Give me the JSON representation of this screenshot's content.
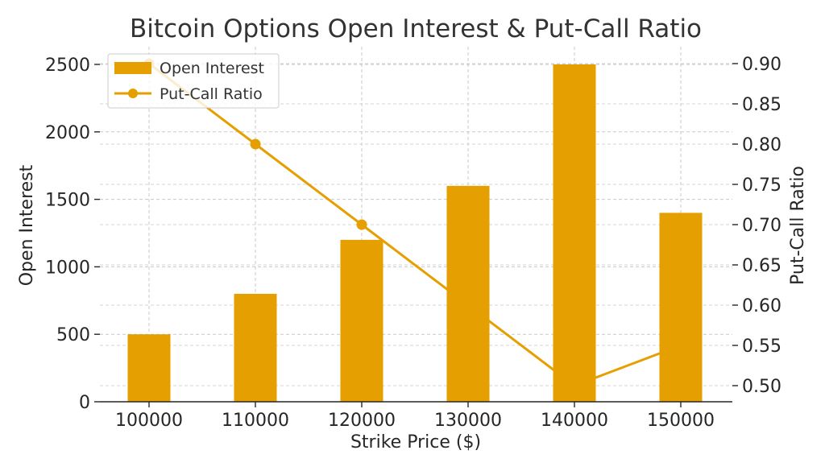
{
  "chart_data": {
    "type": "bar",
    "title": "Bitcoin Options Open Interest & Put-Call Ratio",
    "xlabel": "Strike Price ($)",
    "ylabel": "Open Interest",
    "y2label": "Put-Call Ratio",
    "categories": [
      "100000",
      "110000",
      "120000",
      "130000",
      "140000",
      "150000"
    ],
    "series": [
      {
        "name": "Open Interest",
        "type": "bar",
        "axis": "left",
        "values": [
          500,
          800,
          1200,
          1600,
          2500,
          1400
        ],
        "color": "#E59F00"
      },
      {
        "name": "Put-Call Ratio",
        "type": "line",
        "axis": "right",
        "values": [
          0.9,
          0.8,
          0.7,
          0.6,
          0.5,
          0.55
        ],
        "color": "#E59F00"
      }
    ],
    "ylim": [
      0,
      2500
    ],
    "y2lim": [
      0.48,
      0.9
    ],
    "yticks": [
      "0",
      "500",
      "1000",
      "1500",
      "2000",
      "2500"
    ],
    "y2ticks": [
      "0.50",
      "0.55",
      "0.60",
      "0.65",
      "0.70",
      "0.75",
      "0.80",
      "0.85",
      "0.90"
    ],
    "grid": true,
    "legend": "top-left"
  }
}
